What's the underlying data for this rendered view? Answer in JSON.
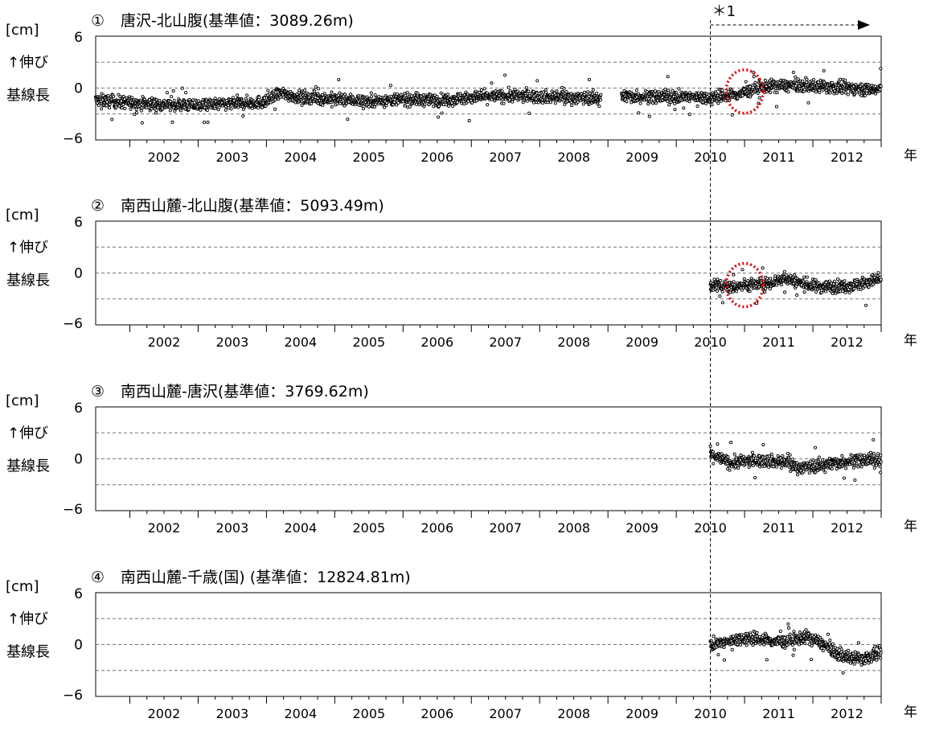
{
  "chart_data": {
    "type": "scatter",
    "x_ticks": [
      "2002",
      "2003",
      "2004",
      "2005",
      "2006",
      "2007",
      "2008",
      "2009",
      "2010",
      "2011",
      "2012"
    ],
    "x_axis_label": "年",
    "y_ticks": [
      "6",
      "0",
      "−6"
    ],
    "y_unit_label": "[cm]",
    "y_labels": {
      "stretch": "↑伸び",
      "baseline": "基線長"
    },
    "ylim": [
      -6,
      6
    ],
    "xlim": [
      2001.5,
      2013.0
    ],
    "grid": "dashed horizontal at ±3 and 0",
    "annotation": {
      "label": "＊1",
      "x_start": 2010.5,
      "x_end": 2013.0
    },
    "panels": [
      {
        "number": "①",
        "title": "唐沢-北山腹(基準値：3089.26m)",
        "segments": [
          {
            "x": [
              2001.5,
              2002.0,
              2002.5,
              2003.0,
              2003.5,
              2004.0,
              2004.2,
              2004.5,
              2004.8,
              2005.0,
              2005.5,
              2006.0,
              2006.5,
              2007.0,
              2007.5,
              2008.0,
              2008.5,
              2008.9
            ],
            "y": [
              -1.4,
              -1.7,
              -1.9,
              -2.0,
              -1.8,
              -1.6,
              -0.6,
              -1.1,
              -1.2,
              -1.3,
              -1.5,
              -1.3,
              -1.4,
              -1.1,
              -0.9,
              -1.0,
              -1.1,
              -1.2
            ]
          },
          {
            "x": [
              2009.2,
              2009.5,
              2010.0,
              2010.5,
              2010.8,
              2011.0,
              2011.3,
              2011.6,
              2012.0,
              2012.5,
              2013.0
            ],
            "y": [
              -0.9,
              -1.0,
              -1.0,
              -1.1,
              -0.9,
              -0.5,
              0.2,
              0.3,
              0.2,
              0.0,
              -0.2
            ]
          }
        ],
        "circle": {
          "x": 2011.0,
          "y": -0.4
        }
      },
      {
        "number": "②",
        "title": "南西山麓-北山腹(基準値：5093.49m)",
        "segments": [
          {
            "x": [
              2010.5,
              2010.8,
              2011.0,
              2011.3,
              2011.6,
              2011.8,
              2012.0,
              2012.3,
              2012.6,
              2013.0
            ],
            "y": [
              -1.4,
              -1.6,
              -1.4,
              -1.3,
              -0.6,
              -1.1,
              -1.5,
              -1.6,
              -1.4,
              -0.7
            ]
          }
        ],
        "circle": {
          "x": 2011.0,
          "y": -1.4
        }
      },
      {
        "number": "③",
        "title": "南西山麓-唐沢(基準値：3769.62m)",
        "segments": [
          {
            "x": [
              2010.5,
              2010.8,
              2011.0,
              2011.3,
              2011.6,
              2011.8,
              2012.0,
              2012.3,
              2012.6,
              2013.0
            ],
            "y": [
              0.5,
              -0.5,
              -0.3,
              -0.2,
              -0.4,
              -1.0,
              -0.9,
              -0.5,
              -0.2,
              -0.1
            ]
          }
        ]
      },
      {
        "number": "④",
        "title": "南西山麓-千歳(国) (基準値：12824.81m)",
        "segments": [
          {
            "x": [
              2010.5,
              2010.7,
              2011.0,
              2011.3,
              2011.6,
              2011.9,
              2012.1,
              2012.4,
              2012.7,
              2013.0
            ],
            "y": [
              0.0,
              0.2,
              0.8,
              0.5,
              0.3,
              0.9,
              0.3,
              -1.3,
              -1.7,
              -1.0
            ]
          }
        ]
      }
    ]
  }
}
